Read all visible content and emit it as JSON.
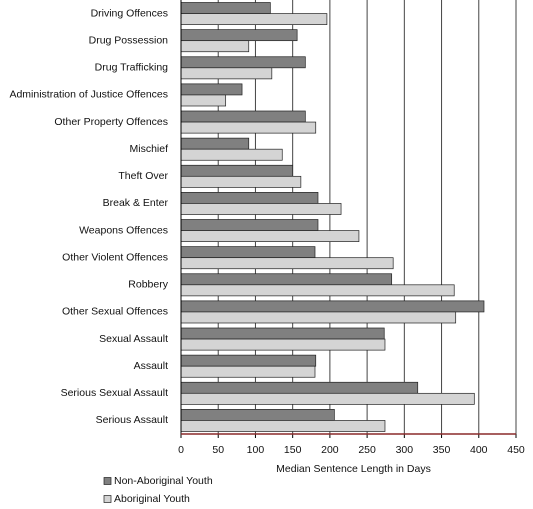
{
  "chart_data": {
    "type": "bar",
    "orientation": "horizontal",
    "x_label": "Median Sentence Length in Days",
    "categories": [
      "Driving Offences",
      "Drug Possession",
      "Drug Trafficking",
      "Administration of Justice Offences",
      "Other Property Offences",
      "Mischief",
      "Theft Over",
      "Break & Enter",
      "Weapons Offences",
      "Other Violent Offences",
      "Robbery",
      "Other Sexual Offences",
      "Sexual Assault",
      "Assault",
      "Serious Sexual Assault",
      "Serious Assault"
    ],
    "series": [
      {
        "name": "Non-Aboriginal Youth",
        "color": "#808080",
        "values": [
          120,
          156,
          167,
          82,
          167,
          91,
          150,
          184,
          184,
          180,
          283,
          407,
          273,
          181,
          318,
          206
        ]
      },
      {
        "name": "Aboriginal Youth",
        "color": "#d4d4d4",
        "values": [
          196,
          91,
          122,
          60,
          181,
          136,
          161,
          215,
          239,
          285,
          367,
          369,
          274,
          180,
          394,
          274
        ]
      }
    ],
    "xlim": [
      0,
      450
    ],
    "xticks": [
      0,
      50,
      100,
      150,
      200,
      250,
      300,
      350,
      400,
      450
    ],
    "grid": true,
    "legend": "bottom-left"
  }
}
